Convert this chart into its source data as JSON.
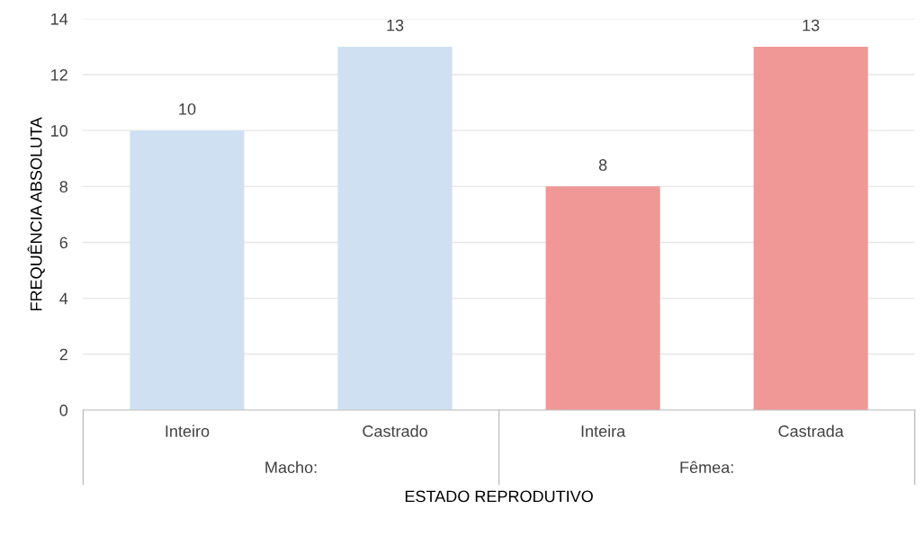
{
  "chart_data": {
    "type": "bar",
    "xlabel": "ESTADO REPRODUTIVO",
    "ylabel": "FREQUÊNCIA ABSOLUTA",
    "categories": [
      "Inteiro",
      "Castrado",
      "Inteira",
      "Castrada"
    ],
    "values": [
      10,
      13,
      8,
      13
    ],
    "colors": [
      "#cfe0f3",
      "#cfe0f3",
      "#f09896",
      "#f09896"
    ],
    "ylim": [
      0,
      14
    ],
    "yticks": [
      0,
      2,
      4,
      6,
      8,
      10,
      12,
      14
    ],
    "grid": "y",
    "data_labels": true,
    "annotations": [
      "Macho:",
      "Fêmea:"
    ]
  }
}
